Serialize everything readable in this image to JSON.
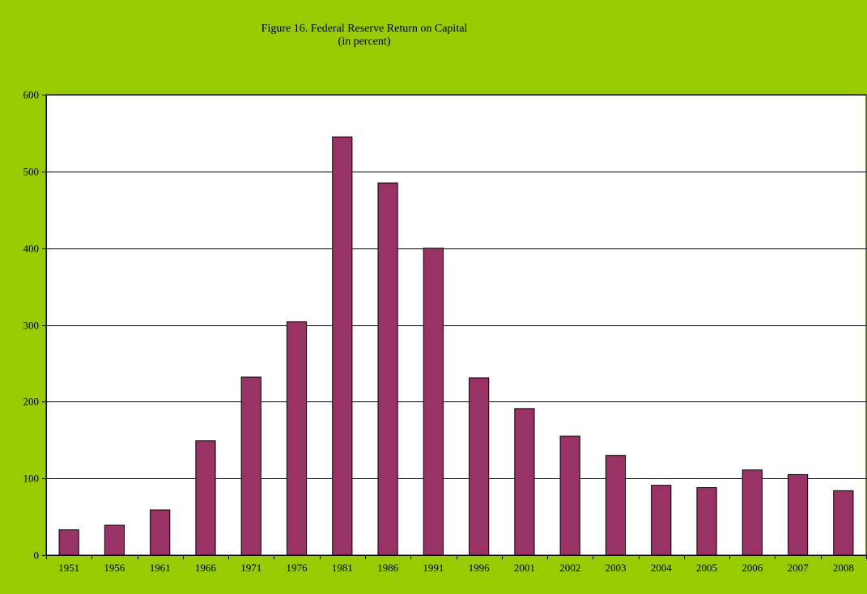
{
  "chart_data": {
    "type": "bar",
    "title": "Figure 16. Federal Reserve Return on Capital",
    "subtitle": "(in percent)",
    "xlabel": "",
    "ylabel": "",
    "categories": [
      "1951",
      "1956",
      "1961",
      "1966",
      "1971",
      "1976",
      "1981",
      "1986",
      "1991",
      "1996",
      "2001",
      "2002",
      "2003",
      "2004",
      "2005",
      "2006",
      "2007",
      "2008"
    ],
    "values": [
      33,
      39,
      59,
      149,
      232,
      304,
      545,
      485,
      400,
      231,
      191,
      155,
      130,
      91,
      88,
      111,
      105,
      84
    ],
    "ylim": [
      0,
      600
    ],
    "yticks": [
      0,
      100,
      200,
      300,
      400,
      500,
      600
    ],
    "grid": true,
    "legend": "none",
    "colors": {
      "bar_fill": "#993366",
      "background": "#99cc00",
      "plot_background": "#ffffff"
    }
  }
}
